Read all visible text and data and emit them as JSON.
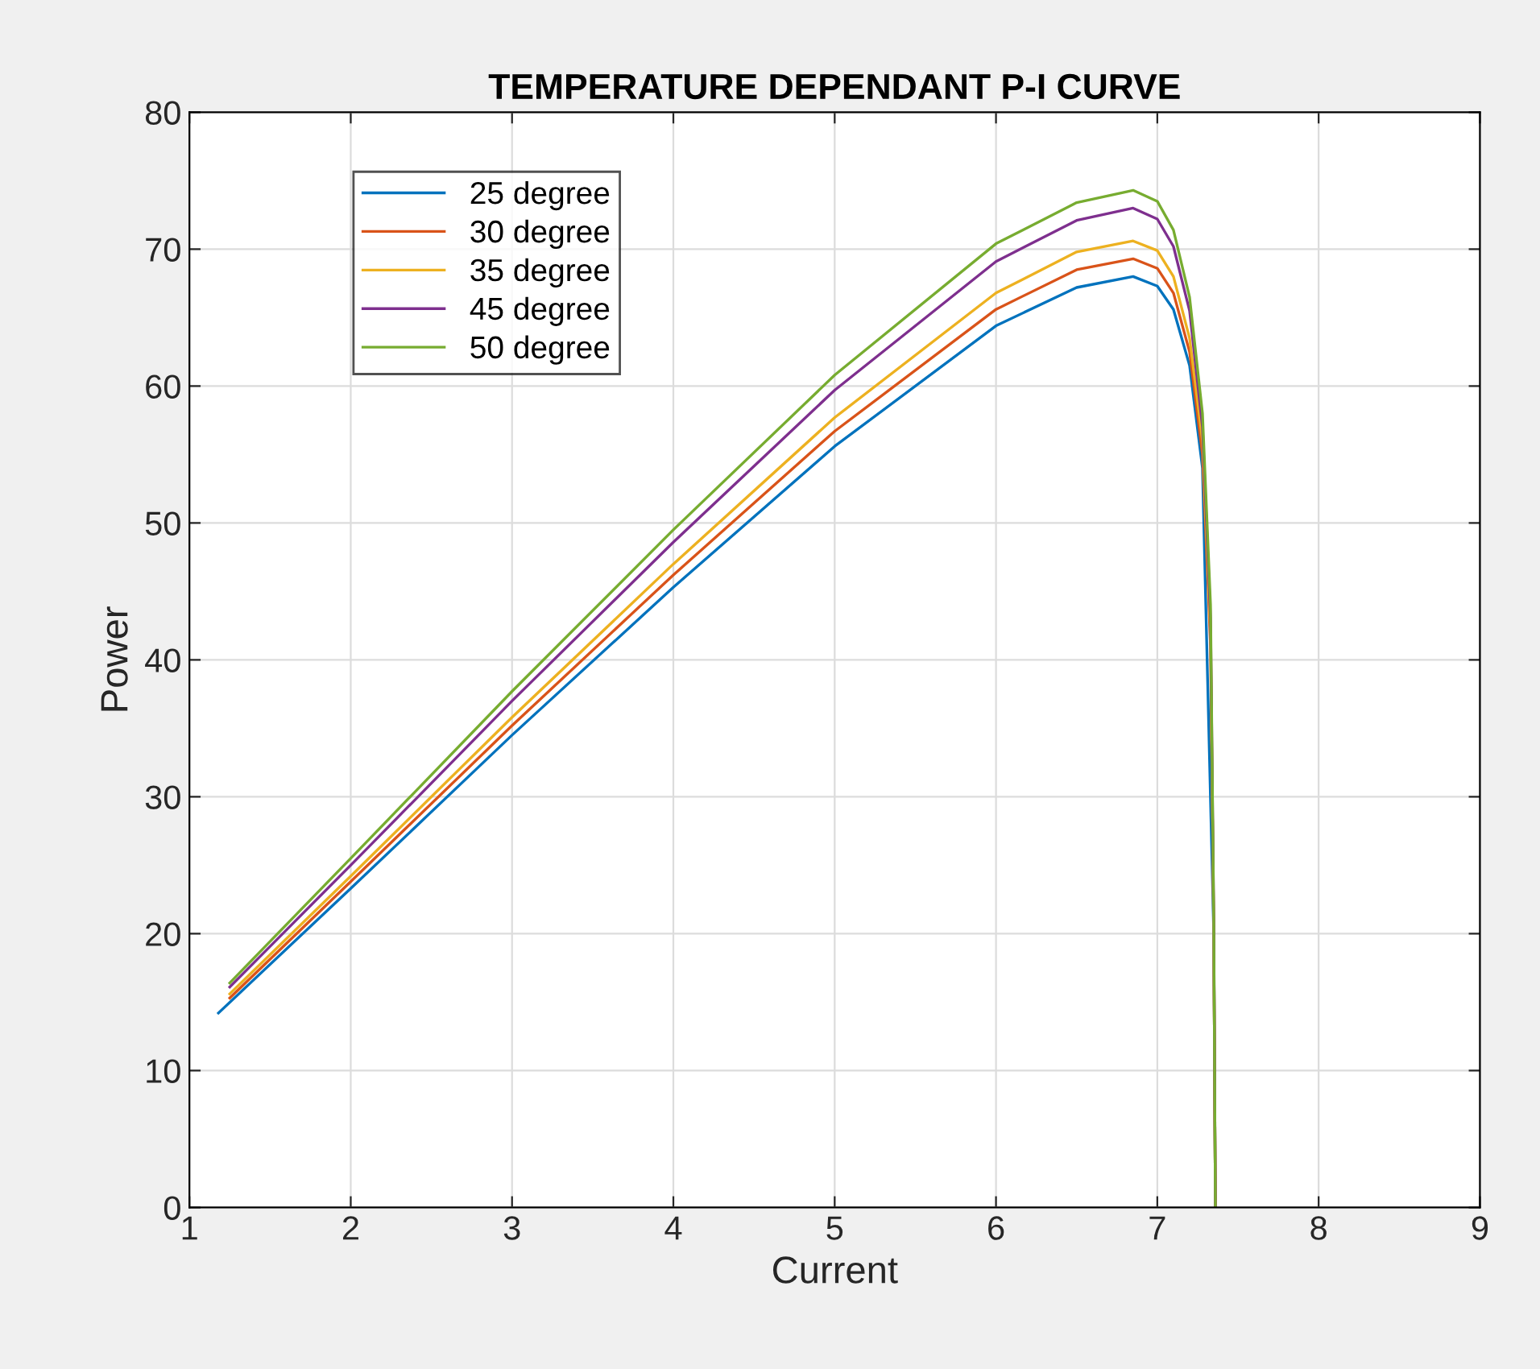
{
  "chart_data": {
    "type": "line",
    "title": "TEMPERATURE DEPENDANT P-I CURVE",
    "xlabel": "Current",
    "ylabel": "Power",
    "xlim": [
      1,
      9
    ],
    "xticks": [
      1,
      2,
      3,
      4,
      5,
      6,
      7,
      8,
      9
    ],
    "ylim": [
      0,
      80
    ],
    "yticks": [
      0,
      10,
      20,
      30,
      40,
      50,
      60,
      70,
      80
    ],
    "grid": true,
    "legend": "top left",
    "marker": "none",
    "line_style": "solid",
    "series": [
      {
        "name": "25 degree",
        "color": "#0072bd",
        "x": [
          1.18,
          2,
          3,
          4,
          5,
          6,
          6.5,
          6.85,
          7.0,
          7.1,
          7.2,
          7.28,
          7.35,
          7.36
        ],
        "values": [
          14.2,
          23.3,
          34.5,
          45.3,
          55.6,
          64.4,
          67.2,
          68.0,
          67.3,
          65.6,
          61.5,
          54,
          20,
          0
        ]
      },
      {
        "name": "30 degree",
        "color": "#d95319",
        "x": [
          1.25,
          2,
          3,
          4,
          5,
          6,
          6.5,
          6.85,
          7.0,
          7.1,
          7.2,
          7.28,
          7.33,
          7.35,
          7.36
        ],
        "values": [
          15.3,
          23.8,
          35.2,
          46.2,
          56.7,
          65.6,
          68.5,
          69.3,
          68.6,
          66.8,
          62.5,
          55,
          41,
          20,
          0
        ]
      },
      {
        "name": "35 degree",
        "color": "#edb120",
        "x": [
          1.25,
          2,
          3,
          4,
          5,
          6,
          6.5,
          6.85,
          7.0,
          7.1,
          7.2,
          7.28,
          7.33,
          7.35,
          7.36
        ],
        "values": [
          15.6,
          24.2,
          35.8,
          47.0,
          57.7,
          66.8,
          69.8,
          70.6,
          69.9,
          68.0,
          63.5,
          56,
          42,
          20,
          0
        ]
      },
      {
        "name": "45 degree",
        "color": "#7e2f8e",
        "x": [
          1.25,
          2,
          3,
          4,
          5,
          6,
          6.5,
          6.85,
          7.0,
          7.1,
          7.2,
          7.28,
          7.33,
          7.35,
          7.36
        ],
        "values": [
          16.1,
          25.0,
          37.0,
          48.6,
          59.7,
          69.1,
          72.1,
          73.0,
          72.2,
          70.2,
          65.5,
          57,
          43,
          21,
          0
        ]
      },
      {
        "name": "50 degree",
        "color": "#77ac30",
        "x": [
          1.25,
          2,
          3,
          4,
          5,
          6,
          6.5,
          6.85,
          7.0,
          7.1,
          7.2,
          7.28,
          7.33,
          7.35,
          7.36
        ],
        "values": [
          16.4,
          25.5,
          37.7,
          49.5,
          60.8,
          70.4,
          73.4,
          74.3,
          73.5,
          71.4,
          66.5,
          58,
          44,
          21,
          0
        ]
      }
    ]
  }
}
